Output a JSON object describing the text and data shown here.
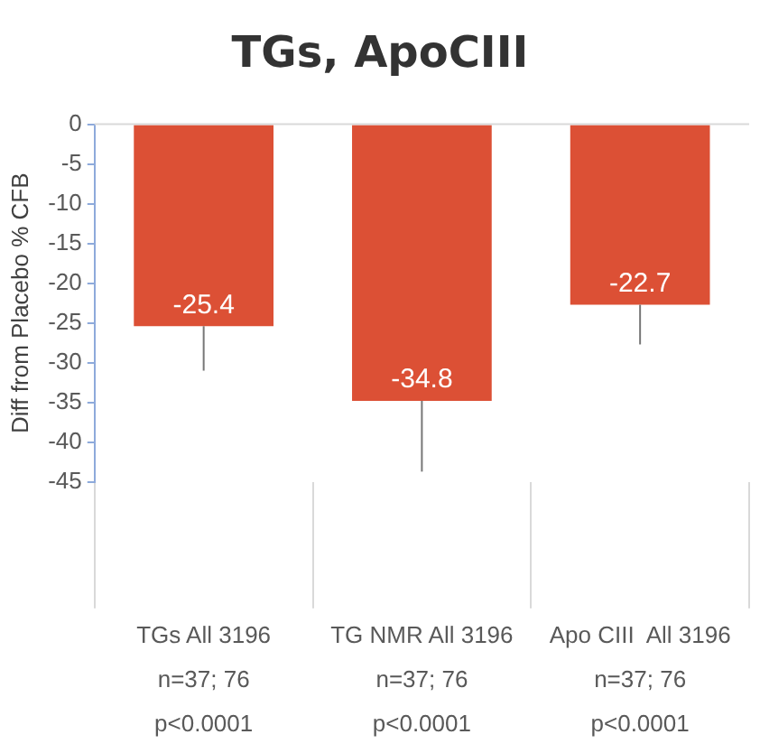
{
  "chart_data": {
    "type": "bar",
    "title": "TGs, ApoCIII",
    "ylabel": "Diff from Placebo % CFB",
    "categories": [
      "TGs All 3196\nn=37; 76\np<0.0001",
      "TG NMR All 3196\nn=37; 76\np<0.0001",
      "Apo CIII  All 3196\nn=37; 76\np<0.0001"
    ],
    "values": [
      -25.4,
      -34.8,
      -22.7
    ],
    "color": "#dc5035",
    "errors": [
      [
        -31,
        -25.4
      ],
      [
        -43.7,
        -34.8
      ],
      [
        -27.7,
        -22.7
      ]
    ],
    "ylim": [
      -45,
      0
    ],
    "yticks": [
      0,
      -5,
      -10,
      -15,
      -20,
      -25,
      -30,
      -35,
      -40,
      -45
    ],
    "grid": false,
    "legend": false,
    "data_labels": true
  }
}
